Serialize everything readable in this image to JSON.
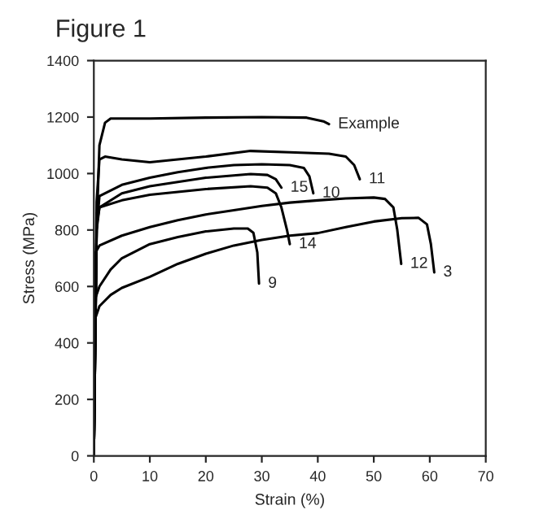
{
  "chart_data": {
    "type": "line",
    "title": "Figure 1",
    "xlabel": "Strain (%)",
    "ylabel": "Stress (MPa)",
    "xlim": [
      0,
      70
    ],
    "xticks": [
      0,
      10,
      20,
      30,
      40,
      50,
      60,
      70
    ],
    "ylim": [
      0,
      1400
    ],
    "yticks": [
      0,
      200,
      400,
      600,
      800,
      1000,
      1200,
      1400
    ],
    "grid": false,
    "legend": false,
    "marker": "none",
    "line_style": "solid",
    "series": [
      {
        "name": "Example",
        "color": "#000000",
        "x": [
          0,
          0.5,
          1,
          2,
          3,
          10,
          20,
          30,
          38,
          41,
          42
        ],
        "values": [
          0,
          800,
          1100,
          1180,
          1195,
          1195,
          1198,
          1200,
          1198,
          1185,
          1175
        ]
      },
      {
        "name": "11",
        "color": "#000000",
        "x": [
          0,
          0.5,
          1,
          2,
          5,
          10,
          20,
          28,
          35,
          42,
          45,
          46.5,
          47.5
        ],
        "values": [
          0,
          900,
          1050,
          1060,
          1050,
          1040,
          1060,
          1080,
          1075,
          1070,
          1060,
          1030,
          980
        ]
      },
      {
        "name": "10",
        "color": "#000000",
        "x": [
          0,
          0.5,
          1,
          5,
          10,
          15,
          20,
          25,
          30,
          35,
          37.5,
          38.5,
          39.2
        ],
        "values": [
          0,
          800,
          920,
          960,
          985,
          1005,
          1020,
          1030,
          1033,
          1030,
          1020,
          990,
          930
        ]
      },
      {
        "name": "15",
        "color": "#000000",
        "x": [
          0,
          0.5,
          1,
          5,
          10,
          20,
          28,
          31,
          32.5,
          33.5
        ],
        "values": [
          0,
          800,
          880,
          930,
          955,
          985,
          998,
          995,
          980,
          950
        ]
      },
      {
        "name": "12",
        "color": "#000000",
        "x": [
          0,
          0.3,
          1,
          5,
          10,
          15,
          20,
          25,
          30,
          35,
          40,
          45,
          50,
          52,
          53.5,
          54.2,
          54.9
        ],
        "values": [
          0,
          720,
          745,
          780,
          810,
          835,
          855,
          870,
          885,
          897,
          905,
          912,
          915,
          910,
          880,
          800,
          680
        ]
      },
      {
        "name": "14",
        "color": "#000000",
        "x": [
          0,
          0.5,
          1,
          5,
          10,
          20,
          28,
          31,
          32.5,
          33.5,
          34.5,
          35
        ],
        "values": [
          0,
          820,
          880,
          905,
          925,
          945,
          955,
          950,
          930,
          880,
          800,
          750
        ]
      },
      {
        "name": "9",
        "color": "#000000",
        "x": [
          0,
          0.3,
          1,
          3,
          5,
          10,
          15,
          20,
          25,
          27.5,
          28.5,
          29.2,
          29.5
        ],
        "values": [
          0,
          560,
          600,
          660,
          700,
          750,
          775,
          795,
          805,
          805,
          790,
          720,
          610
        ]
      },
      {
        "name": "3",
        "color": "#000000",
        "x": [
          0,
          0.3,
          1,
          3,
          5,
          10,
          15,
          20,
          25,
          30,
          35,
          40,
          45,
          50,
          55,
          58,
          59.5,
          60.2,
          60.8
        ],
        "values": [
          0,
          490,
          530,
          570,
          595,
          634,
          680,
          716,
          745,
          765,
          780,
          789,
          810,
          830,
          842,
          843,
          820,
          750,
          650
        ]
      }
    ]
  }
}
